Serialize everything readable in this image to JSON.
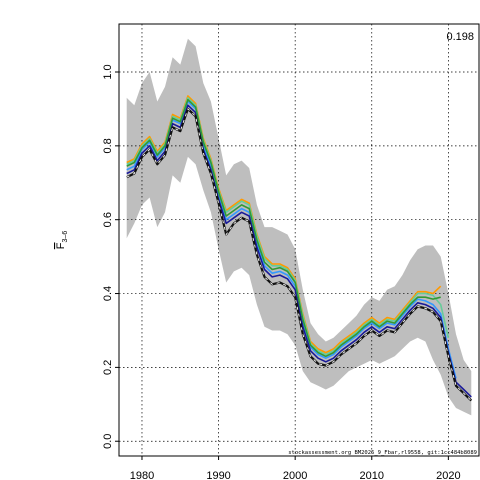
{
  "chart_data": {
    "type": "line",
    "ylabel_main": "F",
    "ylabel_sub": "3–6",
    "corner_value": "0.198",
    "footer_text": "stockassessment.org BM2026_9_Fbar,rl9558, git:1cc484b8089",
    "xlim": [
      1977,
      2024
    ],
    "ylim": [
      -0.04,
      1.13
    ],
    "x_ticks": [
      1980,
      1990,
      2000,
      2010,
      2020
    ],
    "x_tick_labels": [
      "1980",
      "1990",
      "2000",
      "2010",
      "2020"
    ],
    "y_ticks": [
      0.0,
      0.2,
      0.4,
      0.6,
      0.8,
      1.0
    ],
    "y_tick_labels": [
      "0.0",
      "0.2",
      "0.4",
      "0.6",
      "0.8",
      "1.0"
    ],
    "grid": true,
    "band": {
      "x": [
        1978,
        1979,
        1980,
        1981,
        1982,
        1983,
        1984,
        1985,
        1986,
        1987,
        1988,
        1989,
        1990,
        1991,
        1992,
        1993,
        1994,
        1995,
        1996,
        1997,
        1998,
        1999,
        2000,
        2001,
        2002,
        2003,
        2004,
        2005,
        2006,
        2007,
        2008,
        2009,
        2010,
        2011,
        2012,
        2013,
        2014,
        2015,
        2016,
        2017,
        2018,
        2019,
        2020,
        2021,
        2022,
        2023
      ],
      "upper": [
        0.93,
        0.91,
        0.97,
        1.0,
        0.92,
        0.96,
        1.04,
        1.02,
        1.09,
        1.07,
        0.97,
        0.92,
        0.82,
        0.72,
        0.75,
        0.76,
        0.74,
        0.64,
        0.58,
        0.58,
        0.57,
        0.56,
        0.52,
        0.41,
        0.32,
        0.29,
        0.27,
        0.28,
        0.3,
        0.32,
        0.34,
        0.37,
        0.39,
        0.38,
        0.41,
        0.42,
        0.45,
        0.49,
        0.52,
        0.53,
        0.53,
        0.5,
        0.4,
        0.29,
        0.22,
        0.19
      ],
      "lower": [
        0.55,
        0.59,
        0.64,
        0.66,
        0.58,
        0.62,
        0.72,
        0.7,
        0.77,
        0.75,
        0.68,
        0.62,
        0.52,
        0.43,
        0.46,
        0.47,
        0.45,
        0.37,
        0.31,
        0.3,
        0.3,
        0.29,
        0.26,
        0.19,
        0.16,
        0.15,
        0.14,
        0.15,
        0.17,
        0.19,
        0.2,
        0.21,
        0.22,
        0.21,
        0.22,
        0.23,
        0.25,
        0.27,
        0.28,
        0.27,
        0.22,
        0.18,
        0.12,
        0.09,
        0.08,
        0.07
      ]
    },
    "series": [
      {
        "color": "#FF9900",
        "x": [
          1978,
          1979,
          1980,
          1981,
          1982,
          1983,
          1984,
          1985,
          1986,
          1987,
          1988,
          1989,
          1990,
          1991,
          1992,
          1993,
          1994,
          1995,
          1996,
          1997,
          1998,
          1999,
          2000,
          2001,
          2002,
          2003,
          2004,
          2005,
          2006,
          2007,
          2008,
          2009,
          2010,
          2011,
          2012,
          2013,
          2014,
          2015,
          2016,
          2017,
          2018,
          2019
        ],
        "y": [
          0.755,
          0.765,
          0.805,
          0.825,
          0.785,
          0.81,
          0.885,
          0.875,
          0.935,
          0.915,
          0.82,
          0.765,
          0.685,
          0.625,
          0.64,
          0.655,
          0.645,
          0.56,
          0.5,
          0.48,
          0.48,
          0.47,
          0.44,
          0.345,
          0.27,
          0.25,
          0.24,
          0.25,
          0.27,
          0.285,
          0.3,
          0.32,
          0.335,
          0.32,
          0.335,
          0.33,
          0.355,
          0.38,
          0.405,
          0.405,
          0.4,
          0.42
        ]
      },
      {
        "color": "#66CC99",
        "x": [
          1978,
          1979,
          1980,
          1981,
          1982,
          1983,
          1984,
          1985,
          1986,
          1987,
          1988,
          1989,
          1990,
          1991,
          1992,
          1993,
          1994,
          1995,
          1996,
          1997,
          1998,
          1999,
          2000,
          2001,
          2002,
          2003,
          2004,
          2005,
          2006,
          2007,
          2008,
          2009,
          2010,
          2011,
          2012,
          2013,
          2014,
          2015,
          2016,
          2017,
          2018,
          2019,
          2020
        ],
        "y": [
          0.75,
          0.76,
          0.8,
          0.82,
          0.78,
          0.805,
          0.88,
          0.87,
          0.93,
          0.91,
          0.815,
          0.76,
          0.68,
          0.62,
          0.635,
          0.65,
          0.64,
          0.555,
          0.495,
          0.475,
          0.475,
          0.465,
          0.435,
          0.34,
          0.265,
          0.245,
          0.235,
          0.245,
          0.265,
          0.28,
          0.295,
          0.315,
          0.33,
          0.315,
          0.33,
          0.325,
          0.35,
          0.375,
          0.4,
          0.4,
          0.395,
          0.37,
          0.28
        ]
      },
      {
        "color": "#3399FF",
        "x": [
          1978,
          1979,
          1980,
          1981,
          1982,
          1983,
          1984,
          1985,
          1986,
          1987,
          1988,
          1989,
          1990,
          1991,
          1992,
          1993,
          1994,
          1995,
          1996,
          1997,
          1998,
          1999,
          2000,
          2001,
          2002,
          2003,
          2004,
          2005,
          2006,
          2007,
          2008,
          2009,
          2010,
          2011,
          2012,
          2013,
          2014,
          2015,
          2016,
          2017,
          2018,
          2019,
          2020,
          2021
        ],
        "y": [
          0.735,
          0.745,
          0.79,
          0.81,
          0.77,
          0.795,
          0.87,
          0.86,
          0.92,
          0.9,
          0.8,
          0.745,
          0.665,
          0.6,
          0.615,
          0.63,
          0.62,
          0.535,
          0.475,
          0.455,
          0.46,
          0.45,
          0.42,
          0.32,
          0.255,
          0.235,
          0.225,
          0.235,
          0.255,
          0.27,
          0.285,
          0.305,
          0.32,
          0.305,
          0.32,
          0.315,
          0.34,
          0.365,
          0.385,
          0.38,
          0.37,
          0.345,
          0.25,
          0.17
        ]
      },
      {
        "color": "#1A1A99",
        "x": [
          1978,
          1979,
          1980,
          1981,
          1982,
          1983,
          1984,
          1985,
          1986,
          1987,
          1988,
          1989,
          1990,
          1991,
          1992,
          1993,
          1994,
          1995,
          1996,
          1997,
          1998,
          1999,
          2000,
          2001,
          2002,
          2003,
          2004,
          2005,
          2006,
          2007,
          2008,
          2009,
          2010,
          2011,
          2012,
          2013,
          2014,
          2015,
          2016,
          2017,
          2018,
          2019,
          2020,
          2021,
          2022,
          2023
        ],
        "y": [
          0.725,
          0.735,
          0.78,
          0.8,
          0.76,
          0.785,
          0.86,
          0.85,
          0.91,
          0.89,
          0.79,
          0.735,
          0.655,
          0.59,
          0.605,
          0.62,
          0.61,
          0.525,
          0.465,
          0.445,
          0.45,
          0.44,
          0.41,
          0.31,
          0.245,
          0.225,
          0.215,
          0.225,
          0.245,
          0.26,
          0.275,
          0.295,
          0.31,
          0.295,
          0.31,
          0.305,
          0.33,
          0.355,
          0.375,
          0.37,
          0.36,
          0.335,
          0.24,
          0.16,
          0.14,
          0.12
        ]
      },
      {
        "color": "#339933",
        "x": [
          1978,
          1979,
          1980,
          1981,
          1982,
          1983,
          1984,
          1985,
          1986,
          1987,
          1988,
          1989,
          1990,
          1991,
          1992,
          1993,
          1994,
          1995,
          1996,
          1997,
          1998,
          1999,
          2000,
          2001,
          2002,
          2003,
          2004,
          2005,
          2006,
          2007,
          2008,
          2009,
          2010,
          2011,
          2012,
          2013,
          2014,
          2015,
          2016,
          2017,
          2018,
          2019
        ],
        "y": [
          0.745,
          0.755,
          0.795,
          0.815,
          0.775,
          0.8,
          0.875,
          0.865,
          0.925,
          0.905,
          0.81,
          0.755,
          0.675,
          0.61,
          0.625,
          0.64,
          0.63,
          0.545,
          0.485,
          0.465,
          0.47,
          0.46,
          0.43,
          0.33,
          0.26,
          0.24,
          0.23,
          0.24,
          0.26,
          0.275,
          0.29,
          0.31,
          0.325,
          0.31,
          0.325,
          0.32,
          0.345,
          0.37,
          0.39,
          0.39,
          0.385,
          0.39
        ]
      }
    ],
    "black_dashed": {
      "color": "#111111",
      "x": [
        1978,
        1979,
        1980,
        1981,
        1982,
        1983,
        1984,
        1985,
        1986,
        1987,
        1988,
        1989,
        1990,
        1991,
        1992,
        1993,
        1994,
        1995,
        1996,
        1997,
        1998,
        1999,
        2000,
        2001,
        2002,
        2003,
        2004,
        2005,
        2006,
        2007,
        2008,
        2009,
        2010,
        2011,
        2012,
        2013,
        2014,
        2015,
        2016,
        2017,
        2018,
        2019,
        2020,
        2021,
        2022,
        2023
      ],
      "y": [
        0.715,
        0.725,
        0.77,
        0.79,
        0.75,
        0.775,
        0.85,
        0.84,
        0.9,
        0.88,
        0.78,
        0.725,
        0.645,
        0.56,
        0.59,
        0.605,
        0.595,
        0.505,
        0.445,
        0.425,
        0.43,
        0.42,
        0.39,
        0.29,
        0.23,
        0.21,
        0.205,
        0.215,
        0.235,
        0.25,
        0.265,
        0.285,
        0.3,
        0.285,
        0.3,
        0.295,
        0.32,
        0.345,
        0.365,
        0.36,
        0.35,
        0.325,
        0.23,
        0.15,
        0.13,
        0.11
      ]
    }
  }
}
